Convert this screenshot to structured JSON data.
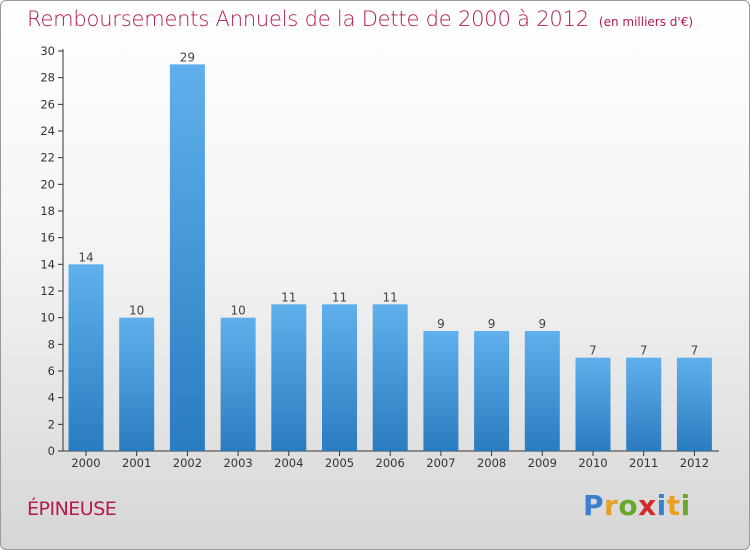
{
  "header": {
    "title": "Remboursements Annuels de la Dette de 2000 à 2012",
    "unit": "(en milliers d'€)"
  },
  "footer": {
    "place": "ÉPINEUSE",
    "logo_letters": [
      {
        "char": "P",
        "color": "#3b7fd3"
      },
      {
        "char": "r",
        "color": "#e8a020"
      },
      {
        "char": "o",
        "color": "#6aa82c"
      },
      {
        "char": "x",
        "color": "#d02c2c"
      },
      {
        "char": "i",
        "color": "#3b7fd3"
      },
      {
        "char": "t",
        "color": "#e8a020"
      },
      {
        "char": "i",
        "color": "#6aa82c"
      }
    ]
  },
  "chart_data": {
    "type": "bar",
    "title": "Remboursements Annuels de la Dette de 2000 à 2012",
    "subtitle": "(en milliers d'€)",
    "xlabel": "",
    "ylabel": "",
    "categories": [
      "2000",
      "2001",
      "2002",
      "2003",
      "2004",
      "2005",
      "2006",
      "2007",
      "2008",
      "2009",
      "2010",
      "2011",
      "2012"
    ],
    "values": [
      14,
      10,
      29,
      10,
      11,
      11,
      11,
      9,
      9,
      9,
      7,
      7,
      7
    ],
    "ylim": [
      0,
      30
    ],
    "yticks": [
      0,
      2,
      4,
      6,
      8,
      10,
      12,
      14,
      16,
      18,
      20,
      22,
      24,
      26,
      28,
      30
    ],
    "grid": false,
    "legend": "none",
    "bar_color_top": "#5fb0ec",
    "bar_color_bottom": "#2a7cc0"
  }
}
